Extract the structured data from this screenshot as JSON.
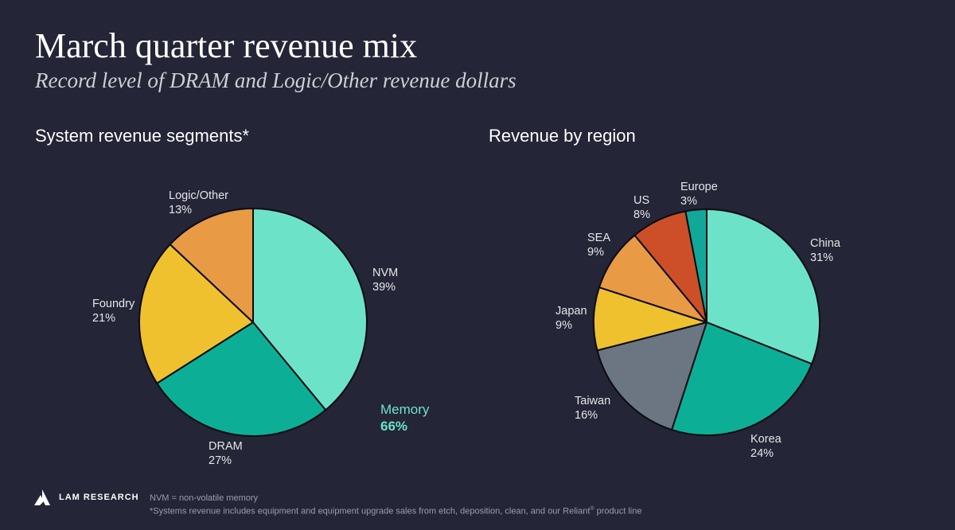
{
  "header": {
    "title": "March quarter revenue mix",
    "subtitle": "Record level of DRAM and Logic/Other revenue dollars"
  },
  "memory_callout": {
    "label": "Memory",
    "value": "66%"
  },
  "brand": {
    "name": "LAM RESEARCH"
  },
  "footnotes": {
    "line1": "NVM = non-volatile memory",
    "line2_prefix": "*Systems revenue includes equipment and equipment upgrade sales from etch, deposition, clean, and our Reliant",
    "line2_sup": "®",
    "line2_suffix": " product line"
  },
  "colors": {
    "background": "#242536",
    "mint": "#6ce3c9",
    "teal": "#0caf96",
    "yellow": "#f0c12f",
    "orange": "#e89a45",
    "red_orange": "#cd4f28",
    "slate": "#6b7682",
    "dark_teal": "#11a899"
  },
  "chart_data": [
    {
      "type": "pie",
      "title": "System revenue segments*",
      "slices": [
        {
          "name": "NVM",
          "value": 39,
          "label": "39%",
          "color": "#6ce3c9"
        },
        {
          "name": "DRAM",
          "value": 27,
          "label": "27%",
          "color": "#0caf96"
        },
        {
          "name": "Foundry",
          "value": 21,
          "label": "21%",
          "color": "#f0c12f"
        },
        {
          "name": "Logic/Other",
          "value": 13,
          "label": "13%",
          "color": "#e89a45"
        }
      ]
    },
    {
      "type": "pie",
      "title": "Revenue by region",
      "slices": [
        {
          "name": "China",
          "value": 31,
          "label": "31%",
          "color": "#6ce3c9"
        },
        {
          "name": "Korea",
          "value": 24,
          "label": "24%",
          "color": "#0caf96"
        },
        {
          "name": "Taiwan",
          "value": 16,
          "label": "16%",
          "color": "#6b7682"
        },
        {
          "name": "Japan",
          "value": 9,
          "label": "9%",
          "color": "#f0c12f"
        },
        {
          "name": "SEA",
          "value": 9,
          "label": "9%",
          "color": "#e89a45"
        },
        {
          "name": "US",
          "value": 8,
          "label": "8%",
          "color": "#cd4f28"
        },
        {
          "name": "Europe",
          "value": 3,
          "label": "3%",
          "color": "#11a899"
        }
      ]
    }
  ]
}
